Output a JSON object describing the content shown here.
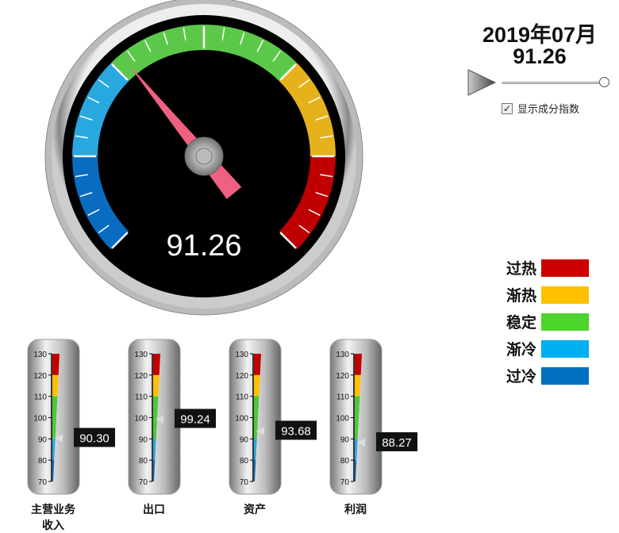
{
  "header": {
    "date": "2019年07月",
    "value": "91.26"
  },
  "controls": {
    "play_icon": "play-triangle-icon",
    "slider_value": 1.0,
    "checkbox_label": "显示成分指数",
    "checkbox_checked": true
  },
  "gauge": {
    "value": 91.26,
    "display": "91.26",
    "min": 70,
    "max": 130,
    "bands": [
      {
        "from": 70,
        "to": 80,
        "color": "#0a6cc0"
      },
      {
        "from": 80,
        "to": 90,
        "color": "#29a8e0"
      },
      {
        "from": 90,
        "to": 110,
        "color": "#5cc84a"
      },
      {
        "from": 110,
        "to": 120,
        "color": "#e6b21c"
      },
      {
        "from": 120,
        "to": 130,
        "color": "#c00000"
      }
    ]
  },
  "legend": [
    {
      "label": "过热",
      "color": "#cc0000"
    },
    {
      "label": "渐热",
      "color": "#ffc000"
    },
    {
      "label": "稳定",
      "color": "#4cd42c"
    },
    {
      "label": "渐冷",
      "color": "#00b0f0"
    },
    {
      "label": "过冷",
      "color": "#0070c0"
    }
  ],
  "thermometers": {
    "ticks": [
      "130",
      "120",
      "110",
      "100",
      "90",
      "80",
      "70"
    ],
    "items": [
      {
        "label": "主营业务收入",
        "value": 90.3,
        "display": "90.30"
      },
      {
        "label": "出口",
        "value": 99.24,
        "display": "99.24"
      },
      {
        "label": "资产",
        "value": 93.68,
        "display": "93.68"
      },
      {
        "label": "利润",
        "value": 88.27,
        "display": "88.27"
      }
    ]
  }
}
